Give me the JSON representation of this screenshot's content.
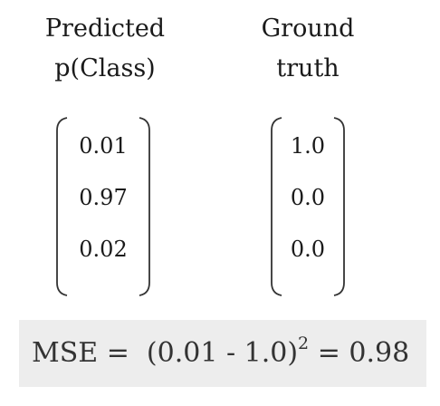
{
  "predicted": {
    "heading_line1": "Predicted",
    "heading_line2": "p(Class)",
    "values": [
      "0.01",
      "0.97",
      "0.02"
    ]
  },
  "ground_truth": {
    "heading_line1": "Ground",
    "heading_line2": "truth",
    "values": [
      "1.0",
      "0.0",
      "0.0"
    ]
  },
  "mse": {
    "label": "MSE =",
    "expression": "(0.01 - 1.0)",
    "exponent": "2",
    "result": "= 0.98",
    "background": "#ededed"
  }
}
